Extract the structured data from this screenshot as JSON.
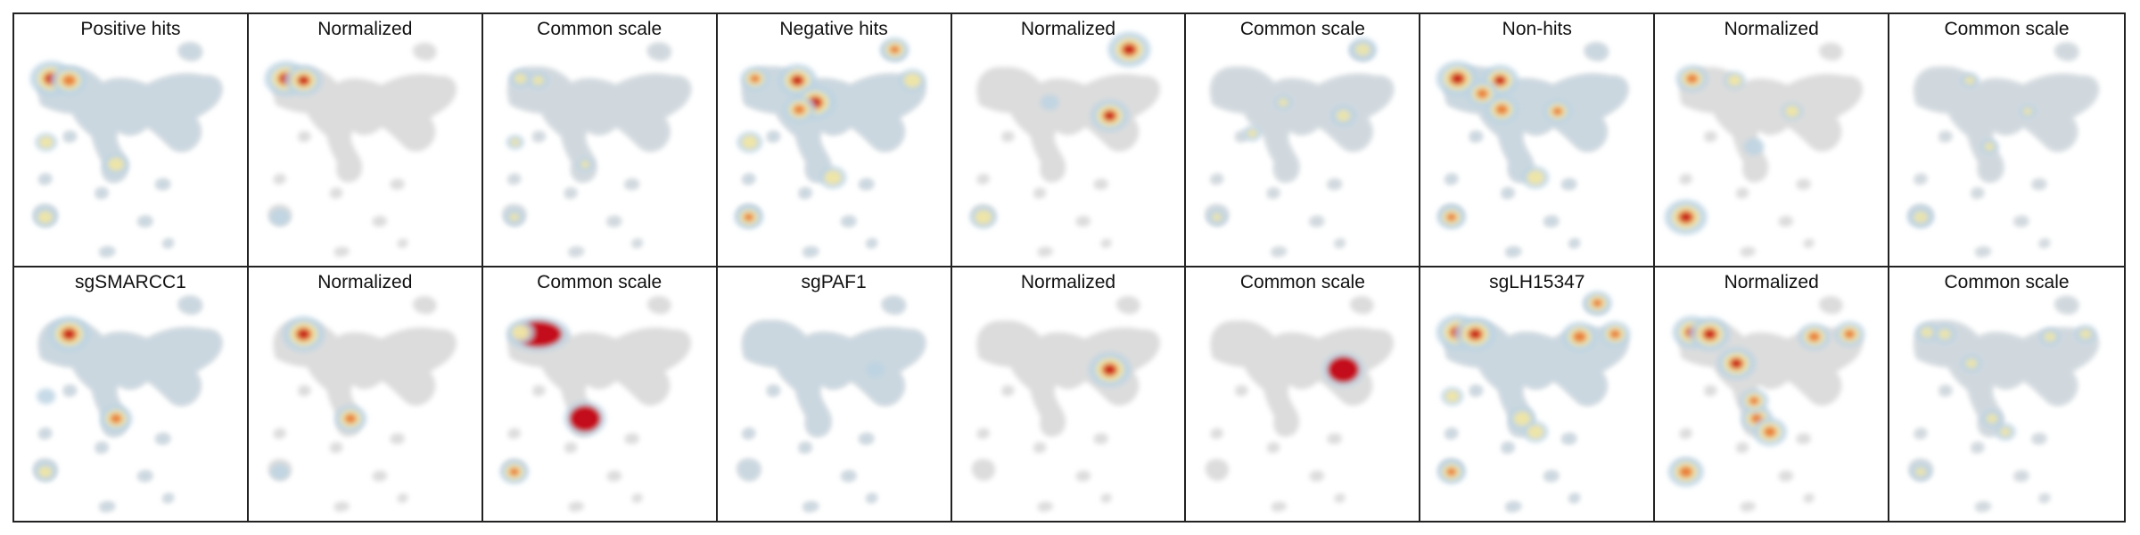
{
  "panels": [
    {
      "title": "Positive hits",
      "style": "density",
      "hotspots": [
        [
          "A",
          1.0
        ],
        [
          "B",
          0.8
        ],
        [
          "M",
          0.5
        ],
        [
          "S",
          0.45
        ],
        [
          "G",
          0.4
        ]
      ]
    },
    {
      "title": "Normalized",
      "style": "normalized",
      "hotspots": [
        [
          "A",
          1.0
        ],
        [
          "B",
          0.85
        ],
        [
          "S",
          0.35
        ]
      ]
    },
    {
      "title": "Common scale",
      "style": "common",
      "hotspots": [
        [
          "A",
          0.5
        ],
        [
          "B",
          0.45
        ],
        [
          "M",
          0.3
        ],
        [
          "S",
          0.35
        ],
        [
          "G",
          0.3
        ]
      ]
    },
    {
      "title": "Negative hits",
      "style": "density",
      "hotspots": [
        [
          "A",
          0.6
        ],
        [
          "C",
          0.9
        ],
        [
          "D",
          1.0
        ],
        [
          "E",
          0.7
        ],
        [
          "Q",
          0.6
        ],
        [
          "R",
          0.55
        ],
        [
          "S",
          0.6
        ],
        [
          "G",
          0.5
        ],
        [
          "K",
          0.55
        ]
      ]
    },
    {
      "title": "Normalized",
      "style": "normalized",
      "hotspots": [
        [
          "Q",
          1.0
        ],
        [
          "O",
          0.9
        ],
        [
          "S",
          0.55
        ],
        [
          "D",
          0.3
        ]
      ]
    },
    {
      "title": "Common scale",
      "style": "common",
      "hotspots": [
        [
          "Q",
          0.65
        ],
        [
          "O",
          0.6
        ],
        [
          "D",
          0.35
        ],
        [
          "S",
          0.35
        ],
        [
          "H",
          0.35
        ]
      ]
    },
    {
      "title": "Non-hits",
      "style": "density",
      "hotspots": [
        [
          "A",
          1.0
        ],
        [
          "C",
          0.85
        ],
        [
          "E",
          0.75
        ],
        [
          "F",
          0.7
        ],
        [
          "N",
          0.6
        ],
        [
          "K",
          0.55
        ],
        [
          "S",
          0.6
        ]
      ]
    },
    {
      "title": "Normalized",
      "style": "normalized",
      "hotspots": [
        [
          "S",
          1.0
        ],
        [
          "A",
          0.7
        ],
        [
          "C",
          0.4
        ],
        [
          "N",
          0.4
        ],
        [
          "I",
          0.35
        ]
      ]
    },
    {
      "title": "Common scale",
      "style": "common",
      "hotspots": [
        [
          "S",
          0.6
        ],
        [
          "C",
          0.35
        ],
        [
          "I",
          0.35
        ],
        [
          "N",
          0.3
        ]
      ]
    },
    {
      "title": "sgSMARCC1",
      "style": "density",
      "hotspots": [
        [
          "B",
          1.0
        ],
        [
          "M",
          0.7
        ],
        [
          "S",
          0.4
        ],
        [
          "G",
          0.3
        ]
      ]
    },
    {
      "title": "Normalized",
      "style": "normalized",
      "hotspots": [
        [
          "B",
          1.0
        ],
        [
          "M",
          0.7
        ],
        [
          "S",
          0.3
        ]
      ]
    },
    {
      "title": "Common scale",
      "style": "saturated",
      "hotspots": [
        [
          "B",
          1.0
        ],
        [
          "M",
          0.95
        ],
        [
          "S",
          0.6
        ],
        [
          "A",
          0.55
        ]
      ]
    },
    {
      "title": "sgPAF1",
      "style": "density",
      "hotspots": [
        [
          "O",
          0.3
        ]
      ]
    },
    {
      "title": "Normalized",
      "style": "normalized",
      "hotspots": [
        [
          "O",
          1.0
        ]
      ]
    },
    {
      "title": "Common scale",
      "style": "saturated",
      "hotspots": [
        [
          "O",
          1.0
        ]
      ]
    },
    {
      "title": "sgLH15347",
      "style": "density",
      "hotspots": [
        [
          "A",
          1.0
        ],
        [
          "B",
          0.95
        ],
        [
          "P",
          0.8
        ],
        [
          "R",
          0.65
        ],
        [
          "Q",
          0.6
        ],
        [
          "S",
          0.6
        ],
        [
          "M",
          0.55
        ],
        [
          "K",
          0.5
        ],
        [
          "G",
          0.4
        ]
      ]
    },
    {
      "title": "Normalized",
      "style": "normalized",
      "hotspots": [
        [
          "A",
          0.9
        ],
        [
          "B",
          0.95
        ],
        [
          "E",
          0.9
        ],
        [
          "P",
          0.7
        ],
        [
          "R",
          0.65
        ],
        [
          "S",
          0.8
        ],
        [
          "M",
          0.7
        ],
        [
          "K",
          0.75
        ],
        [
          "I",
          0.6
        ]
      ]
    },
    {
      "title": "Common scale",
      "style": "common",
      "hotspots": [
        [
          "A",
          0.5
        ],
        [
          "B",
          0.5
        ],
        [
          "E",
          0.45
        ],
        [
          "P",
          0.45
        ],
        [
          "R",
          0.45
        ],
        [
          "S",
          0.4
        ],
        [
          "M",
          0.45
        ],
        [
          "K",
          0.4
        ]
      ]
    }
  ],
  "colors": {
    "background_cloud": "#dcdcdc",
    "low": "#bcd3e3",
    "mid": "#f3e7a1",
    "high": "#e9772e",
    "peak": "#c40f1e",
    "border": "#222222"
  }
}
